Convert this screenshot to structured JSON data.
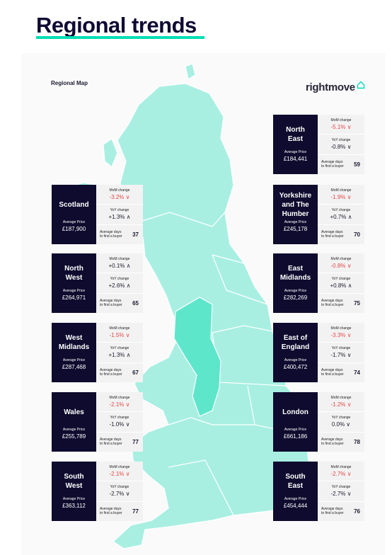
{
  "header": {
    "title": "Regional trends"
  },
  "map": {
    "label": "Regional Map",
    "brand": "rightmove",
    "brand_icon": "house-outline-icon",
    "land_color": "#a8efe2",
    "highlight_color": "#5ee6cb",
    "accent": "#00deb6"
  },
  "labels": {
    "avg_price": "Average Price",
    "mom": "MoM change",
    "yoy": "YoY change",
    "days_1": "Average days",
    "days_2": "to find a buyer"
  },
  "regions": [
    {
      "name": "Scotland",
      "price": "£187,900",
      "mom": "-3.2%",
      "mom_dir": "down",
      "yoy": "+1.3%",
      "yoy_dir": "up",
      "days": "37"
    },
    {
      "name": "North\nWest",
      "price": "£264,971",
      "mom": "+0.1%",
      "mom_dir": "up",
      "yoy": "+2.6%",
      "yoy_dir": "up",
      "days": "65"
    },
    {
      "name": "West\nMidlands",
      "price": "£287,468",
      "mom": "-1.5%",
      "mom_dir": "down",
      "yoy": "+1.3%",
      "yoy_dir": "up",
      "days": "67"
    },
    {
      "name": "Wales",
      "price": "£255,789",
      "mom": "-2.1%",
      "mom_dir": "down",
      "yoy": "-1.0%",
      "yoy_dir": "down",
      "days": "77"
    },
    {
      "name": "South\nWest",
      "price": "£363,112",
      "mom": "-2.1%",
      "mom_dir": "down",
      "yoy": "-2.7%",
      "yoy_dir": "down",
      "days": "77"
    },
    {
      "name": "North\nEast",
      "price": "£184,441",
      "mom": "-5.1%",
      "mom_dir": "down",
      "yoy": "-0.8%",
      "yoy_dir": "down",
      "days": "59"
    },
    {
      "name": "Yorkshire\nand The\nHumber",
      "price": "£245,178",
      "mom": "-1.9%",
      "mom_dir": "down",
      "yoy": "+0.7%",
      "yoy_dir": "up",
      "days": "70"
    },
    {
      "name": "East\nMidlands",
      "price": "£282,269",
      "mom": "-0.8%",
      "mom_dir": "down",
      "yoy": "+0.8%",
      "yoy_dir": "up",
      "days": "75"
    },
    {
      "name": "East of\nEngland",
      "price": "£400,472",
      "mom": "-3.3%",
      "mom_dir": "down",
      "yoy": "-1.7%",
      "yoy_dir": "down",
      "days": "74"
    },
    {
      "name": "London",
      "price": "£661,186",
      "mom": "-1.2%",
      "mom_dir": "down",
      "yoy": "0.0%",
      "yoy_dir": "down",
      "days": "78"
    },
    {
      "name": "South\nEast",
      "price": "£454,444",
      "mom": "-2.7%",
      "mom_dir": "down",
      "yoy": "-2.7%",
      "yoy_dir": "down",
      "days": "76"
    }
  ]
}
